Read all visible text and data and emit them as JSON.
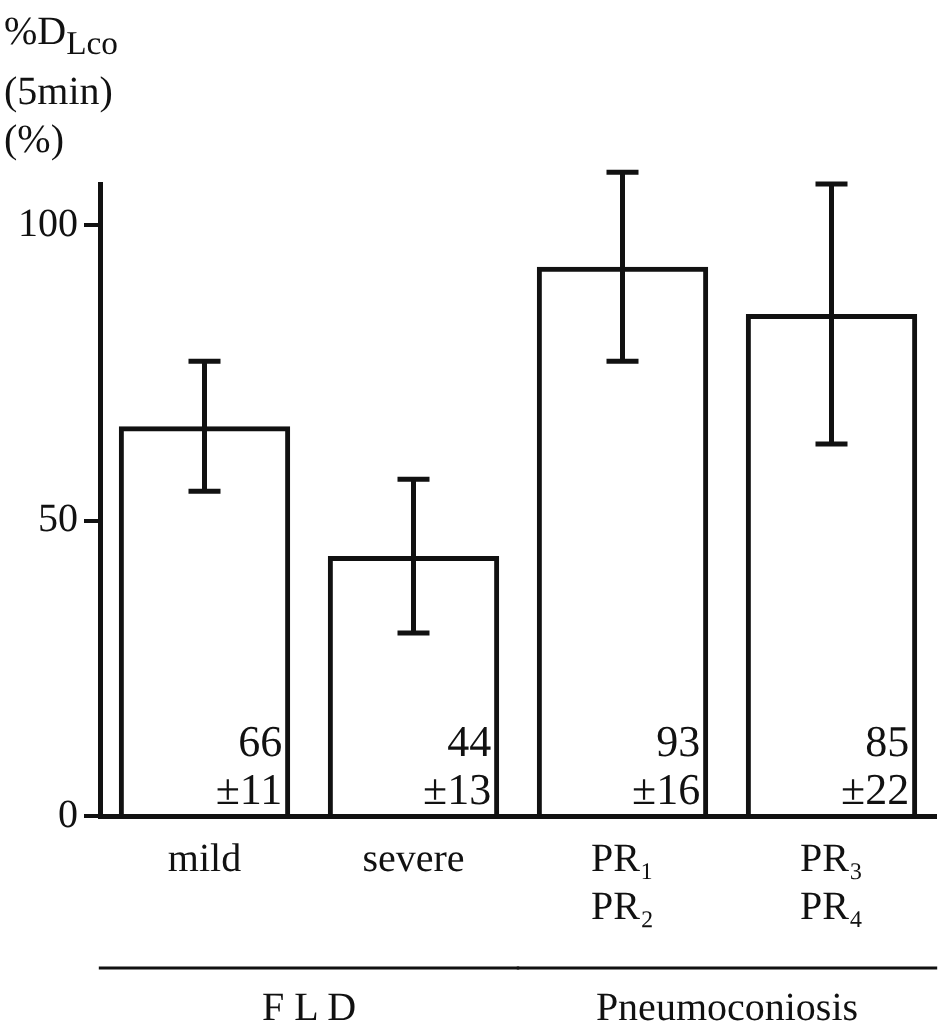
{
  "chart_data": {
    "type": "bar",
    "ylabel": "%D$_{Lco}$\n(5min)\n(%)",
    "categories": [
      "mild",
      "severe",
      "PR₁\nPR₂",
      "PR₃\nPR₄"
    ],
    "values": [
      66,
      44,
      93,
      85
    ],
    "errors": [
      11,
      13,
      16,
      22
    ],
    "value_labels": [
      "66\n±11",
      "44\n±13",
      "93\n±16",
      "85\n±22"
    ],
    "color": "#111111",
    "ylim": [
      0,
      107
    ],
    "yticks": [
      0,
      50,
      100
    ],
    "grid": false,
    "legend": false,
    "annotations": [
      "F L D",
      "Pneumoconiosis"
    ]
  }
}
